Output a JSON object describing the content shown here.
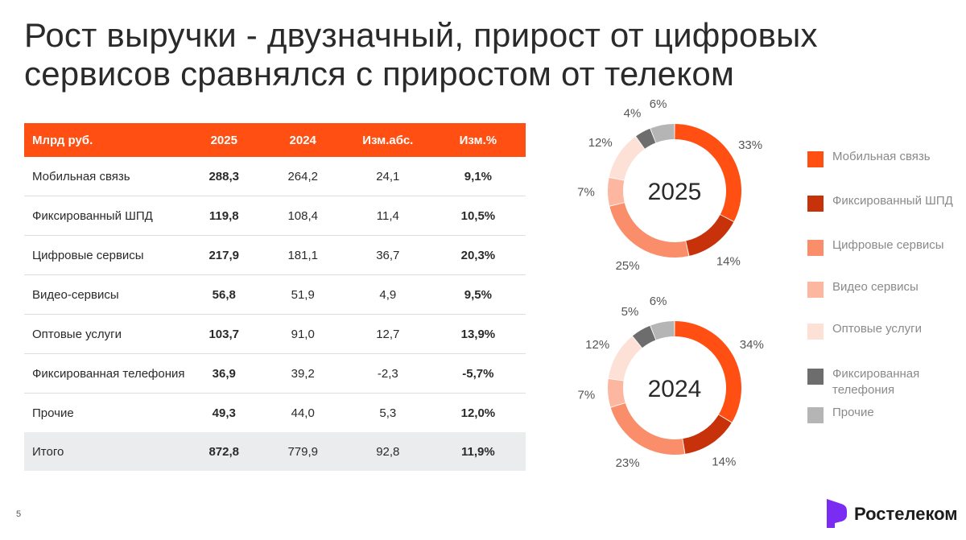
{
  "title": "Рост выручки - двузначный, прирост от цифровых сервисов сравнялся с приростом от телеком",
  "table": {
    "headers": [
      "Млрд руб.",
      "2025",
      "2024",
      "Изм.абс.",
      "Изм.%"
    ],
    "rows": [
      {
        "label": "Мобильная связь",
        "v2025": "288,3",
        "v2024": "264,2",
        "abs": "24,1",
        "pct": "9,1%"
      },
      {
        "label": "Фиксированный ШПД",
        "v2025": "119,8",
        "v2024": "108,4",
        "abs": "11,4",
        "pct": "10,5%"
      },
      {
        "label": "Цифровые сервисы",
        "v2025": "217,9",
        "v2024": "181,1",
        "abs": "36,7",
        "pct": "20,3%"
      },
      {
        "label": "Видео-сервисы",
        "v2025": "56,8",
        "v2024": "51,9",
        "abs": "4,9",
        "pct": "9,5%"
      },
      {
        "label": "Оптовые услуги",
        "v2025": "103,7",
        "v2024": "91,0",
        "abs": "12,7",
        "pct": "13,9%"
      },
      {
        "label": "Фиксированная телефония",
        "v2025": "36,9",
        "v2024": "39,2",
        "abs": "-2,3",
        "pct": "-5,7%"
      },
      {
        "label": "Прочие",
        "v2025": "49,3",
        "v2024": "44,0",
        "abs": "5,3",
        "pct": "12,0%"
      }
    ],
    "total": {
      "label": "Итого",
      "v2025": "872,8",
      "v2024": "779,9",
      "abs": "92,8",
      "pct": "11,9%"
    }
  },
  "chart_data": [
    {
      "type": "pie",
      "center_label": "2025",
      "categories": [
        "Мобильная связь",
        "Фиксированный ШПД",
        "Цифровые сервисы",
        "Видео сервисы",
        "Оптовые услуги",
        "Фиксированная телефония",
        "Прочие"
      ],
      "values": [
        33,
        14,
        25,
        7,
        12,
        4,
        6
      ],
      "labels": [
        "33%",
        "14%",
        "25%",
        "7%",
        "12%",
        "4%",
        "6%"
      ],
      "colors": [
        "#ff4f12",
        "#c8320b",
        "#fb8e6a",
        "#fdb7a0",
        "#fde0d6",
        "#6d6d6d",
        "#b5b5b5"
      ],
      "legend": "right"
    },
    {
      "type": "pie",
      "center_label": "2024",
      "categories": [
        "Мобильная связь",
        "Фиксированный ШПД",
        "Цифровые сервисы",
        "Видео сервисы",
        "Оптовые услуги",
        "Фиксированная телефония",
        "Прочие"
      ],
      "values": [
        34,
        14,
        23,
        7,
        12,
        5,
        6
      ],
      "labels": [
        "34%",
        "14%",
        "23%",
        "7%",
        "12%",
        "5%",
        "6%"
      ],
      "colors": [
        "#ff4f12",
        "#c8320b",
        "#fb8e6a",
        "#fdb7a0",
        "#fde0d6",
        "#6d6d6d",
        "#b5b5b5"
      ],
      "legend": "right"
    }
  ],
  "legend": [
    {
      "label": "Мобильная связь",
      "color": "#ff4f12"
    },
    {
      "label": "Фиксированный ШПД",
      "color": "#c8320b"
    },
    {
      "label": "Цифровые сервисы",
      "color": "#fb8e6a"
    },
    {
      "label": "Видео сервисы",
      "color": "#fdb7a0"
    },
    {
      "label": "Оптовые услуги",
      "color": "#fde0d6"
    },
    {
      "label": "Фиксированная телефония",
      "color": "#6d6d6d"
    },
    {
      "label": "Прочие",
      "color": "#b5b5b5"
    }
  ],
  "page_number": "5",
  "logo": {
    "text": "Ростелеком",
    "mark_icon": "rostelecom-logo-icon",
    "mark_color": "#7a2cf2"
  }
}
